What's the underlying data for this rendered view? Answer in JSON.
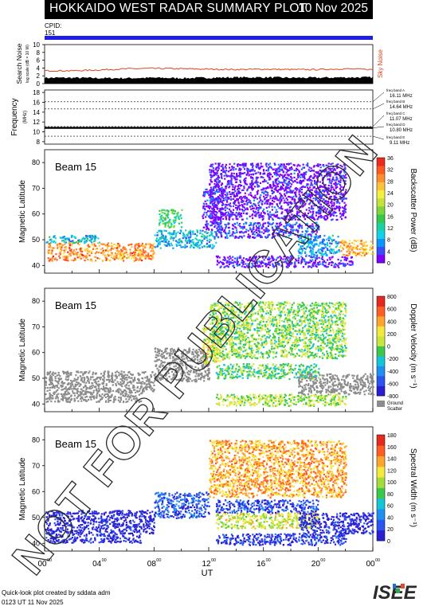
{
  "header": {
    "title": "HOKKAIDO WEST RADAR SUMMARY PLOT",
    "date": "10 Nov 2025"
  },
  "cpid": {
    "label": "CPID:",
    "value": "151"
  },
  "watermark": "NOT FOR PUBLICATION",
  "footer": {
    "credit": "Quick-look plot created by sddata adm",
    "timestamp": "0123 UT 11 Nov 2025"
  },
  "logo": "ISEE",
  "colors": {
    "cpid_bar": "#1e1ee6",
    "sky_noise": "#e0401c",
    "ground_scatter": "#8c8c8c"
  },
  "chart_data": [
    {
      "type": "area",
      "ylabel": "Search Noise",
      "ylabel2": "log scale (dB × 10 W)",
      "series_label": "Sky Noise",
      "yticks": [
        0,
        2,
        4,
        6,
        8,
        10
      ],
      "ylim": [
        0,
        10
      ],
      "x": [
        0,
        2,
        4,
        6,
        8,
        10,
        12,
        14,
        16,
        18,
        20,
        22,
        24
      ],
      "search_noise": [
        1.5,
        1.5,
        1.4,
        1.4,
        1.5,
        1.4,
        1.5,
        1.6,
        1.6,
        1.5,
        1.5,
        1.6,
        1.6
      ],
      "sky_noise": [
        3.3,
        3.3,
        3.5,
        3.8,
        3.9,
        3.8,
        3.7,
        3.6,
        3.7,
        3.6,
        3.6,
        3.8,
        3.6
      ]
    },
    {
      "type": "line",
      "ylabel": "Frequency",
      "unit": "(MHz)",
      "yticks": [
        8,
        10,
        12,
        14,
        16,
        18
      ],
      "ylim": [
        7.5,
        18.5
      ],
      "freq_bands": [
        {
          "label": "freq band A",
          "value": "16.11 MHz",
          "mhz": 16.11
        },
        {
          "label": "freq band B",
          "value": "14.64 MHz",
          "mhz": 14.64
        },
        {
          "label": "freq band C",
          "value": "11.07 MHz",
          "mhz": 11.07
        },
        {
          "label": "freq band D",
          "value": "10.80 MHz",
          "mhz": 10.8
        },
        {
          "label": "freq band E",
          "value": "9.11 MHz",
          "mhz": 9.11
        }
      ],
      "operating_mhz": 10.8
    },
    {
      "type": "heatmap",
      "beam": "Beam 15",
      "ylabel": "Magnetic Latitude",
      "colorbar_label": "Backscatter Power (dB)",
      "colorbar_ticks": [
        "36",
        "32",
        "28",
        "24",
        "20",
        "16",
        "12",
        "8",
        "4",
        "0"
      ],
      "ylim": [
        37,
        85
      ],
      "yticks": [
        40,
        50,
        60,
        70,
        80
      ],
      "regions": [
        {
          "t0": 0.2,
          "t1": 8.0,
          "lat0": 42,
          "lat1": 49,
          "level": 0.8
        },
        {
          "t0": 0.0,
          "t1": 4.0,
          "lat0": 49,
          "lat1": 52,
          "level": 0.28
        },
        {
          "t0": 8.0,
          "t1": 12.5,
          "lat0": 47,
          "lat1": 54,
          "level": 0.25
        },
        {
          "t0": 8.3,
          "t1": 10.0,
          "lat0": 55,
          "lat1": 62,
          "level": 0.4
        },
        {
          "t0": 11.5,
          "t1": 13.0,
          "lat0": 54,
          "lat1": 70,
          "level": 0.05
        },
        {
          "t0": 12.5,
          "t1": 20.0,
          "lat0": 51,
          "lat1": 57,
          "level": 0.08
        },
        {
          "t0": 12.5,
          "t1": 22.5,
          "lat0": 39.5,
          "lat1": 44,
          "level": 0.04
        },
        {
          "t0": 18.5,
          "t1": 21.5,
          "lat0": 44,
          "lat1": 52,
          "level": 0.22
        },
        {
          "t0": 21.5,
          "t1": 24.0,
          "lat0": 44,
          "lat1": 50,
          "level": 0.75
        },
        {
          "t0": 12.0,
          "t1": 22.0,
          "lat0": 58,
          "lat1": 80,
          "level": 0.03
        }
      ]
    },
    {
      "type": "heatmap",
      "beam": "Beam 15",
      "ylabel": "Magnetic Latitude",
      "colorbar_label": "Doppler Velocity (m s⁻¹)",
      "colorbar_ticks": [
        "800",
        "600",
        "400",
        "200",
        "0",
        "-200",
        "-400",
        "-600",
        "-800"
      ],
      "ground_scatter_label": [
        "Ground",
        "Scatter"
      ],
      "ylim": [
        37,
        85
      ],
      "yticks": [
        40,
        50,
        60,
        70,
        80
      ],
      "regions": [
        {
          "t0": 0.0,
          "t1": 8.0,
          "lat0": 44,
          "lat1": 53,
          "level": -1
        },
        {
          "t0": 0.0,
          "t1": 7.0,
          "lat0": 41,
          "lat1": 44,
          "level": -1
        },
        {
          "t0": 8.0,
          "t1": 12.0,
          "lat0": 49,
          "lat1": 62,
          "level": -1
        },
        {
          "t0": 12.5,
          "t1": 20.0,
          "lat0": 50,
          "lat1": 56,
          "level": 0.45
        },
        {
          "t0": 11.5,
          "t1": 13.0,
          "lat0": 56,
          "lat1": 70,
          "level": 0.6
        },
        {
          "t0": 18.5,
          "t1": 24.0,
          "lat0": 44,
          "lat1": 52,
          "level": -1
        },
        {
          "t0": 12.5,
          "t1": 22.0,
          "lat0": 39.5,
          "lat1": 44,
          "level": 0.55
        },
        {
          "t0": 12.0,
          "t1": 22.0,
          "lat0": 58,
          "lat1": 80,
          "level": 0.5
        }
      ]
    },
    {
      "type": "heatmap",
      "beam": "Beam 15",
      "ylabel": "Magnetic Latitude",
      "colorbar_label": "Spectral Width (m s⁻¹)",
      "colorbar_ticks": [
        "180",
        "160",
        "140",
        "120",
        "100",
        "80",
        "60",
        "40",
        "20",
        "0"
      ],
      "ylim": [
        37,
        85
      ],
      "yticks": [
        40,
        50,
        60,
        70,
        80
      ],
      "xlabel": "UT",
      "xticks": [
        "00",
        "04",
        "08",
        "12",
        "16",
        "20",
        "00"
      ],
      "regions": [
        {
          "t0": 0.0,
          "t1": 8.0,
          "lat0": 44,
          "lat1": 53,
          "level": 0.03
        },
        {
          "t0": 0.0,
          "t1": 7.0,
          "lat0": 40.5,
          "lat1": 44,
          "level": 0.04
        },
        {
          "t0": 8.0,
          "t1": 12.0,
          "lat0": 50,
          "lat1": 60,
          "level": 0.15
        },
        {
          "t0": 12.5,
          "t1": 20.0,
          "lat0": 52,
          "lat1": 57,
          "level": 0.12
        },
        {
          "t0": 12.5,
          "t1": 20.0,
          "lat0": 46,
          "lat1": 52,
          "level": 0.6
        },
        {
          "t0": 18.5,
          "t1": 24.0,
          "lat0": 44,
          "lat1": 52,
          "level": 0.04
        },
        {
          "t0": 12.5,
          "t1": 22.0,
          "lat0": 39.5,
          "lat1": 44,
          "level": 0.08
        },
        {
          "t0": 12.0,
          "t1": 22.0,
          "lat0": 58,
          "lat1": 80,
          "level": 0.75
        }
      ]
    }
  ]
}
